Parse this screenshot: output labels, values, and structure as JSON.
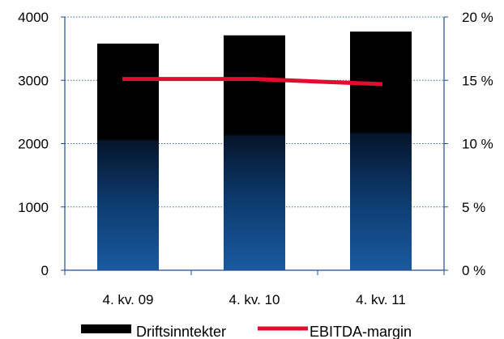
{
  "chart_data": {
    "type": "bar",
    "categories": [
      "4. kv. 09",
      "4. kv. 10",
      "4. kv. 11"
    ],
    "series": [
      {
        "name": "Driftsinntekter",
        "kind": "bar",
        "axis": "left",
        "values": [
          3580,
          3710,
          3770
        ]
      },
      {
        "name": "EBITDA-margin",
        "kind": "line",
        "axis": "right",
        "values": [
          15.1,
          15.1,
          14.7
        ]
      }
    ],
    "y_left": {
      "ylim": [
        0,
        4000
      ],
      "ticks": [
        0,
        1000,
        2000,
        3000,
        4000
      ],
      "tick_labels": [
        "0",
        "1000",
        "2000",
        "3000",
        "4000"
      ]
    },
    "y_right": {
      "ylim": [
        0,
        20
      ],
      "ticks": [
        0,
        5,
        10,
        15,
        20
      ],
      "tick_labels": [
        "0 %",
        "5 %",
        "10 %",
        "15 %",
        "20 %"
      ]
    },
    "grid": "horizontal dotted",
    "legend_position": "bottom",
    "colors": {
      "bar_top": "#000000",
      "bar_bottom": "#1a5aa0",
      "line": "#e30b2e",
      "axis": "#1f4e8c",
      "grid": "#3a6fb0"
    }
  }
}
